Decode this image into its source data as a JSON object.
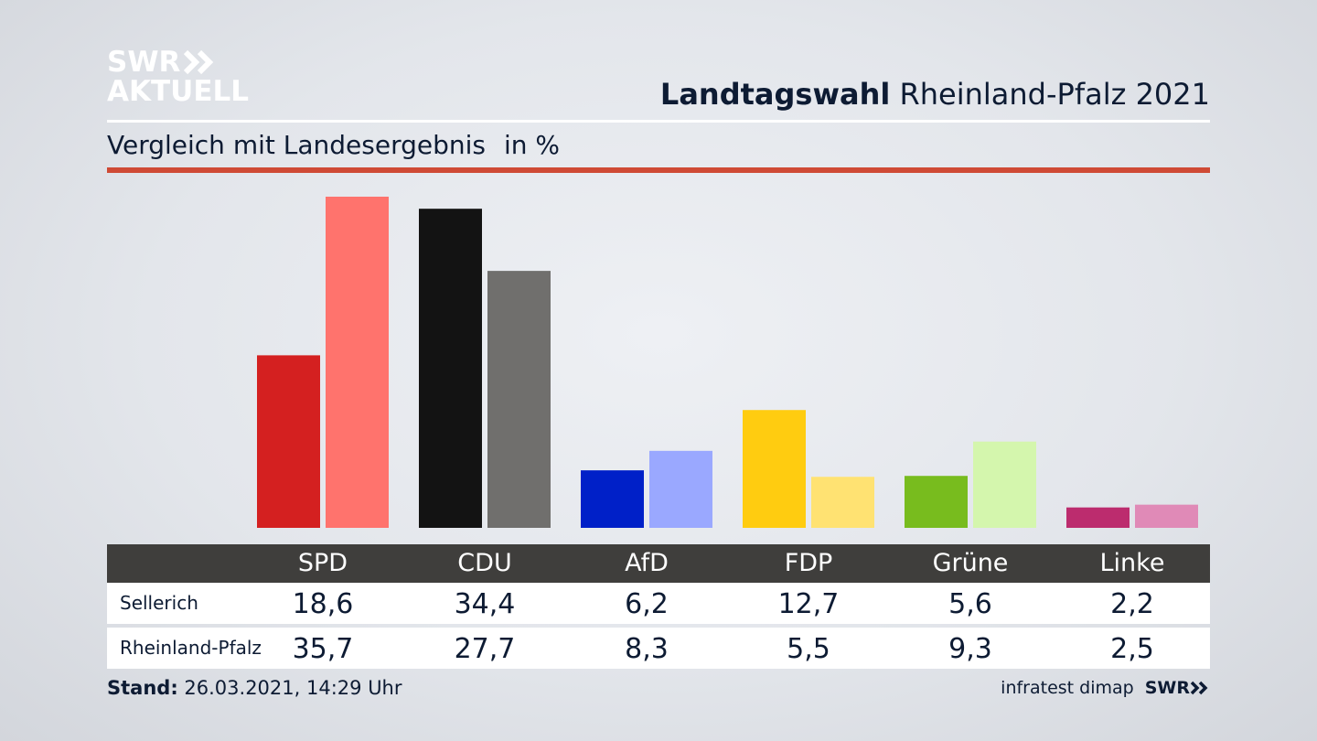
{
  "brand": {
    "line1": "SWR",
    "line2": "AKTUELL",
    "footer_brand": "SWR"
  },
  "header": {
    "title_bold": "Landtagswahl",
    "title_rest": "Rheinland-Pfalz 2021"
  },
  "subtitle": {
    "text": "Vergleich mit Landesergebnis",
    "unit": "in %"
  },
  "chart_data": {
    "type": "bar",
    "categories": [
      "SPD",
      "CDU",
      "AfD",
      "FDP",
      "Grüne",
      "Linke"
    ],
    "series": [
      {
        "name": "Sellerich",
        "values": [
          18.6,
          34.4,
          6.2,
          12.7,
          5.6,
          2.2
        ],
        "colors": [
          "#d42020",
          "#131313",
          "#0020c8",
          "#ffcc10",
          "#78bc1e",
          "#bc2c6e"
        ]
      },
      {
        "name": "Rheinland-Pfalz",
        "values": [
          35.7,
          27.7,
          8.3,
          5.5,
          9.3,
          2.5
        ],
        "colors": [
          "#ff736d",
          "#706f6d",
          "#9aa8ff",
          "#ffe272",
          "#d4f6ad",
          "#e08ab7"
        ]
      }
    ],
    "value_labels": [
      [
        "18,6",
        "34,4",
        "6,2",
        "12,7",
        "5,6",
        "2,2"
      ],
      [
        "35,7",
        "27,7",
        "8,3",
        "5,5",
        "9,3",
        "2,5"
      ]
    ],
    "ylim": [
      0,
      35.7
    ],
    "grid": false,
    "legend": "none"
  },
  "footer": {
    "stand_label": "Stand:",
    "stand_value": "26.03.2021, 14:29 Uhr",
    "source": "infratest dimap"
  }
}
